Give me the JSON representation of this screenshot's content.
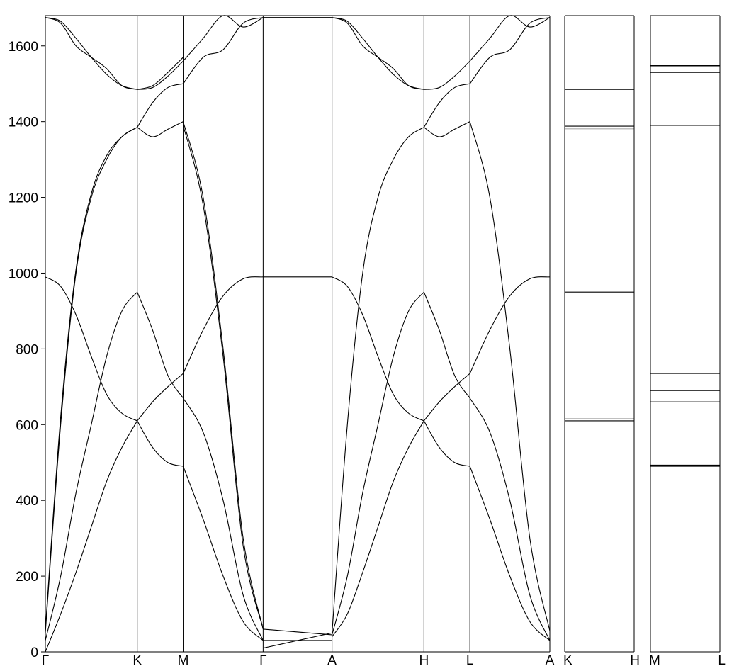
{
  "chart_data": {
    "type": "line",
    "title": "",
    "ylabel": "",
    "xlabel": "",
    "ylim": [
      0,
      1680
    ],
    "yticks": [
      0,
      200,
      400,
      600,
      800,
      1000,
      1200,
      1400,
      1600
    ],
    "ytick_labels": [
      "0",
      "200",
      "400",
      "600",
      "800",
      "1000",
      "1200",
      "1400",
      "1600"
    ],
    "grid": false,
    "panels": [
      {
        "name": "main-path",
        "kpoints": [
          {
            "label": "Γ",
            "pos": 0.0
          },
          {
            "label": "K",
            "pos": 1.0
          },
          {
            "label": "M",
            "pos": 1.5
          },
          {
            "label": "Γ",
            "pos": 2.37
          },
          {
            "label": "A",
            "pos": 3.12
          },
          {
            "label": "H",
            "pos": 4.12
          },
          {
            "label": "L",
            "pos": 4.62
          },
          {
            "label": "A",
            "pos": 5.49
          }
        ],
        "segments": [
          {
            "from": "Γ",
            "to": "K",
            "bands": [
              [
                0,
                100,
                210,
                330,
                450,
                540,
                610
              ],
              [
                30,
                200,
                420,
                600,
                780,
                900,
                950
              ],
              [
                990,
                965,
                890,
                780,
                680,
                630,
                610
              ],
              [
                1675,
                1665,
                1620,
                1570,
                1525,
                1495,
                1485
              ],
              [
                1675,
                1660,
                1600,
                1570,
                1540,
                1495,
                1485
              ],
              [
                50,
                600,
                1000,
                1200,
                1300,
                1360,
                1385
              ],
              [
                60,
                620,
                1010,
                1210,
                1310,
                1360,
                1385
              ]
            ]
          },
          {
            "from": "K",
            "to": "M",
            "bands": [
              [
                610,
                660,
                700,
                735
              ],
              [
                610,
                540,
                500,
                490
              ],
              [
                950,
                850,
                730,
                670
              ],
              [
                1385,
                1450,
                1490,
                1500
              ],
              [
                1385,
                1360,
                1380,
                1400
              ],
              [
                1485,
                1490,
                1520,
                1560
              ],
              [
                1485,
                1495,
                1530,
                1570
              ]
            ]
          },
          {
            "from": "M",
            "to": "Γ",
            "bands": [
              [
                735,
                850,
                940,
                985,
                990
              ],
              [
                490,
                350,
                200,
                80,
                30
              ],
              [
                670,
                580,
                400,
                150,
                30
              ],
              [
                1500,
                1570,
                1590,
                1660,
                1675
              ],
              [
                1560,
                1620,
                1680,
                1650,
                1675
              ],
              [
                1400,
                1200,
                800,
                300,
                60
              ],
              [
                1390,
                1180,
                780,
                280,
                60
              ]
            ]
          },
          {
            "from": "Γ",
            "to": "A",
            "bands": [
              [
                990,
                990
              ],
              [
                1675,
                1675
              ],
              [
                30,
                30
              ],
              [
                60,
                45
              ],
              [
                10,
                50
              ]
            ]
          },
          {
            "from": "A",
            "to": "H",
            "bands": [
              [
                45,
                200,
                420,
                600,
                780,
                900,
                950
              ],
              [
                40,
                100,
                210,
                330,
                450,
                540,
                610
              ],
              [
                990,
                965,
                890,
                780,
                680,
                630,
                610
              ],
              [
                1675,
                1665,
                1620,
                1570,
                1525,
                1495,
                1485
              ],
              [
                1675,
                1660,
                1600,
                1570,
                1540,
                1495,
                1485
              ],
              [
                50,
                600,
                1000,
                1200,
                1300,
                1360,
                1385
              ]
            ]
          },
          {
            "from": "H",
            "to": "L",
            "bands": [
              [
                610,
                660,
                700,
                735
              ],
              [
                610,
                540,
                500,
                490
              ],
              [
                950,
                850,
                730,
                670
              ],
              [
                1385,
                1450,
                1490,
                1500
              ],
              [
                1385,
                1360,
                1380,
                1400
              ],
              [
                1485,
                1490,
                1520,
                1560
              ]
            ]
          },
          {
            "from": "L",
            "to": "A",
            "bands": [
              [
                735,
                850,
                940,
                985,
                990
              ],
              [
                490,
                350,
                200,
                80,
                30
              ],
              [
                670,
                580,
                400,
                150,
                30
              ],
              [
                1500,
                1570,
                1590,
                1660,
                1675
              ],
              [
                1560,
                1620,
                1680,
                1650,
                1675
              ],
              [
                1400,
                1200,
                800,
                300,
                55
              ]
            ]
          }
        ]
      },
      {
        "name": "K-H",
        "kpoints": [
          {
            "label": "K",
            "pos": 0.0
          },
          {
            "label": "H",
            "pos": 1.0
          }
        ],
        "flat_bands": [
          610,
          615,
          950,
          1378,
          1383,
          1388,
          1485
        ]
      },
      {
        "name": "M-L",
        "kpoints": [
          {
            "label": "M",
            "pos": 0.0
          },
          {
            "label": "L",
            "pos": 1.0
          }
        ],
        "flat_bands": [
          490,
          493,
          660,
          690,
          735,
          1390,
          1530,
          1545,
          1548
        ]
      }
    ]
  }
}
